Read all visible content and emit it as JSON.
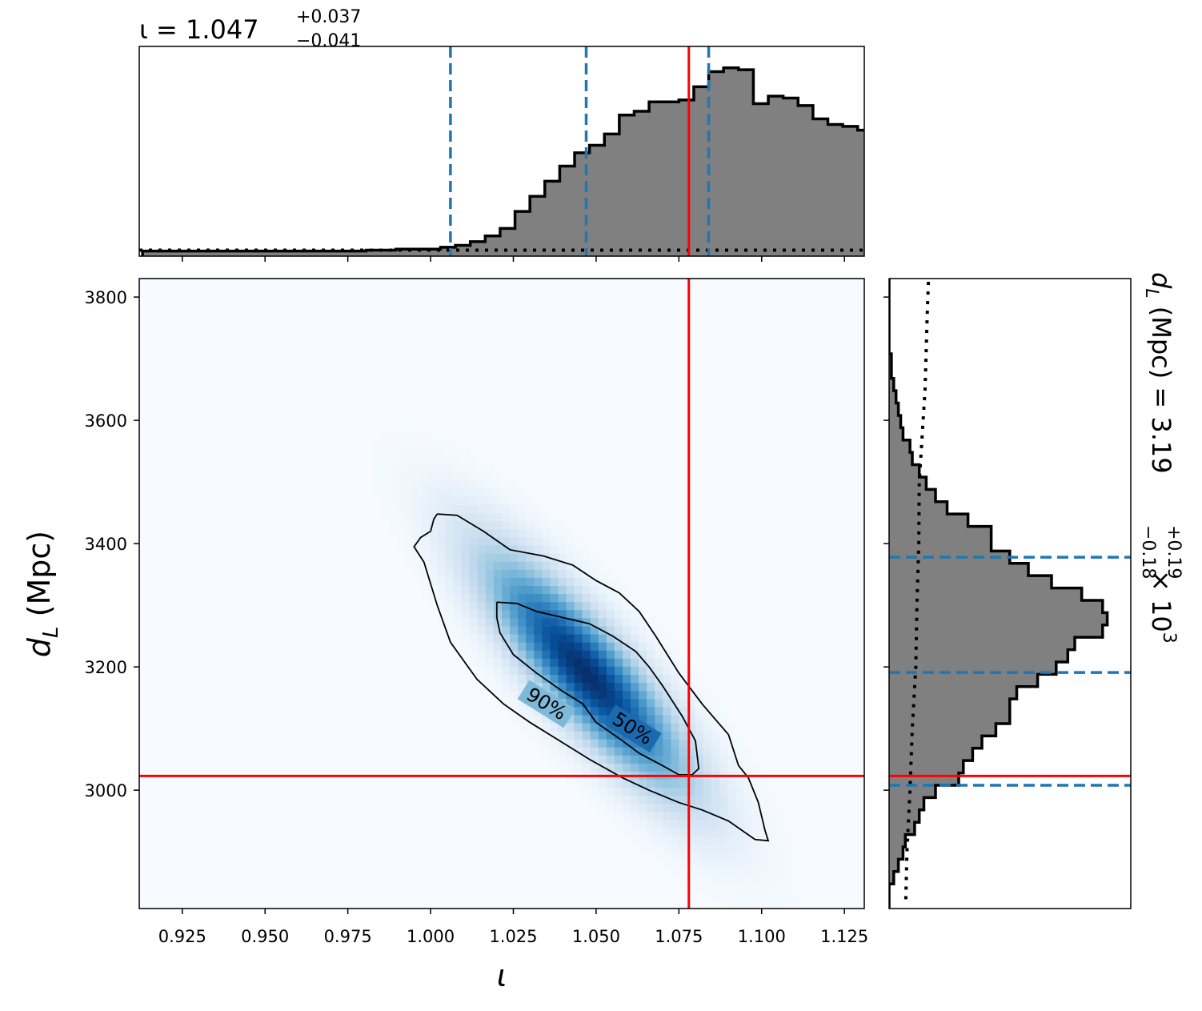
{
  "chart_data": {
    "type": "corner",
    "parameters": {
      "iota": {
        "symbol": "ι",
        "xlabel": "ι",
        "title": {
          "prefix": "ι = 1.047",
          "upper": "+0.037",
          "lower": "−0.041"
        },
        "xlim": [
          0.912,
          1.131
        ],
        "ticks": [
          0.925,
          0.95,
          0.975,
          1.0,
          1.025,
          1.05,
          1.075,
          1.1,
          1.125
        ],
        "tick_labels": [
          "0.925",
          "0.950",
          "0.975",
          "1.000",
          "1.025",
          "1.050",
          "1.075",
          "1.100",
          "1.125"
        ],
        "median": 1.047,
        "quantiles": [
          1.006,
          1.047,
          1.084
        ],
        "true_value": 1.078,
        "hist_edges_start": 0.913,
        "hist_bin_width": 0.0045,
        "hist_counts": [
          0.01,
          0.01,
          0.01,
          0.01,
          0.01,
          0.01,
          0.01,
          0.01,
          0.01,
          0.01,
          0.01,
          0.01,
          0.01,
          0.01,
          0.01,
          0.015,
          0.015,
          0.02,
          0.02,
          0.02,
          0.03,
          0.04,
          0.06,
          0.09,
          0.13,
          0.22,
          0.3,
          0.38,
          0.46,
          0.53,
          0.57,
          0.63,
          0.73,
          0.75,
          0.8,
          0.8,
          0.81,
          0.88,
          0.96,
          0.98,
          0.97,
          0.79,
          0.83,
          0.82,
          0.78,
          0.71,
          0.68,
          0.67,
          0.65,
          0.58,
          0.52,
          0.37,
          0.27,
          0.21,
          0.19,
          0.15,
          0.08,
          0.06,
          0.04,
          0.02,
          0.01,
          0.01,
          0.01,
          0.01,
          0.01,
          0.01,
          0.01,
          0.01,
          0.01,
          0.01,
          0.01,
          0.01,
          0.01,
          0.01,
          0.01,
          0.01,
          0.01,
          0.01,
          0.01,
          0.01,
          0.01,
          0.01,
          0.01,
          0.01,
          0.01,
          0.01,
          0.01,
          0.01,
          0.01,
          0.01,
          0.01,
          0.01,
          0.01,
          0.01,
          0.01,
          0.01,
          0.01
        ],
        "prior_level": 0.015
      },
      "dL": {
        "label_base": "d",
        "label_sub": "L",
        "label_unit": " (Mpc)",
        "ylabel_full": "d_L (Mpc)",
        "title": {
          "prefix": "d",
          "sub": "L",
          "mid": " (Mpc) = 3.19",
          "upper": "+0.19",
          "lower": "−0.18",
          "suffix": " × 10",
          "exp": "3"
        },
        "ylim": [
          2808,
          3830
        ],
        "ticks": [
          3000,
          3200,
          3400,
          3600,
          3800
        ],
        "tick_labels": [
          "3000",
          "3200",
          "3400",
          "3600",
          "3800"
        ],
        "median": 3191,
        "quantiles": [
          3008,
          3191,
          3378
        ],
        "true_value": 3023,
        "hist_edges_start": 2808,
        "hist_bin_width": 20,
        "hist_counts": [
          0.0,
          0.0,
          0.02,
          0.04,
          0.06,
          0.07,
          0.11,
          0.13,
          0.15,
          0.2,
          0.3,
          0.32,
          0.36,
          0.4,
          0.46,
          0.52,
          0.52,
          0.55,
          0.64,
          0.72,
          0.77,
          0.8,
          0.92,
          0.94,
          0.92,
          0.83,
          0.7,
          0.6,
          0.52,
          0.44,
          0.44,
          0.34,
          0.25,
          0.2,
          0.16,
          0.13,
          0.1,
          0.09,
          0.06,
          0.05,
          0.04,
          0.03,
          0.02,
          0.01,
          0.01,
          0.0,
          0.0,
          0.0,
          0.0,
          0.0,
          0.0
        ],
        "prior": [
          [
            2823,
            0.072
          ],
          [
            2900,
            0.077
          ],
          [
            3000,
            0.09
          ],
          [
            3100,
            0.1
          ],
          [
            3200,
            0.115
          ],
          [
            3300,
            0.12
          ],
          [
            3400,
            0.128
          ],
          [
            3500,
            0.13
          ],
          [
            3560,
            0.14
          ],
          [
            3650,
            0.155
          ],
          [
            3780,
            0.165
          ],
          [
            3830,
            0.17
          ]
        ]
      }
    },
    "contours": [
      {
        "label": "50%",
        "points": [
          [
            1.02,
            3305
          ],
          [
            1.026,
            3303
          ],
          [
            1.032,
            3290
          ],
          [
            1.04,
            3280
          ],
          [
            1.048,
            3270
          ],
          [
            1.055,
            3250
          ],
          [
            1.062,
            3225
          ],
          [
            1.066,
            3200
          ],
          [
            1.07,
            3170
          ],
          [
            1.076,
            3120
          ],
          [
            1.08,
            3080
          ],
          [
            1.081,
            3035
          ],
          [
            1.079,
            3025
          ],
          [
            1.075,
            3025
          ],
          [
            1.07,
            3040
          ],
          [
            1.063,
            3060
          ],
          [
            1.058,
            3080
          ],
          [
            1.05,
            3110
          ],
          [
            1.046,
            3140
          ],
          [
            1.04,
            3160
          ],
          [
            1.032,
            3190
          ],
          [
            1.025,
            3220
          ],
          [
            1.021,
            3255
          ],
          [
            1.02,
            3280
          ],
          [
            1.02,
            3305
          ]
        ],
        "label_pos": [
          1.061,
          3100
        ],
        "label_angle": 32
      },
      {
        "label": "90%",
        "points": [
          [
            1.002,
            3448
          ],
          [
            1.008,
            3446
          ],
          [
            1.016,
            3420
          ],
          [
            1.024,
            3390
          ],
          [
            1.034,
            3380
          ],
          [
            1.043,
            3365
          ],
          [
            1.05,
            3340
          ],
          [
            1.057,
            3320
          ],
          [
            1.063,
            3290
          ],
          [
            1.068,
            3250
          ],
          [
            1.075,
            3190
          ],
          [
            1.082,
            3140
          ],
          [
            1.09,
            3090
          ],
          [
            1.093,
            3040
          ],
          [
            1.096,
            3020
          ],
          [
            1.099,
            2980
          ],
          [
            1.101,
            2935
          ],
          [
            1.102,
            2918
          ],
          [
            1.098,
            2920
          ],
          [
            1.09,
            2950
          ],
          [
            1.082,
            2968
          ],
          [
            1.075,
            2980
          ],
          [
            1.066,
            3000
          ],
          [
            1.058,
            3020
          ],
          [
            1.048,
            3050
          ],
          [
            1.039,
            3080
          ],
          [
            1.03,
            3110
          ],
          [
            1.022,
            3140
          ],
          [
            1.014,
            3180
          ],
          [
            1.006,
            3240
          ],
          [
            1.002,
            3300
          ],
          [
            0.998,
            3370
          ],
          [
            0.995,
            3395
          ],
          [
            0.997,
            3410
          ],
          [
            1.0,
            3420
          ],
          [
            1.001,
            3440
          ],
          [
            1.002,
            3448
          ]
        ],
        "label_pos": [
          1.035,
          3140
        ],
        "label_angle": 32
      }
    ],
    "density": {
      "center": [
        1.047,
        3191
      ],
      "cov": [
        [
          0.00038,
          -2.0
        ],
        [
          -2.0,
          14500
        ]
      ]
    },
    "colors": {
      "hist_fill": "#808080",
      "hist_edge": "#000000",
      "quantile_line": "#1f77b4",
      "truth_line": "#ff0000",
      "colormap": "Blues"
    }
  }
}
